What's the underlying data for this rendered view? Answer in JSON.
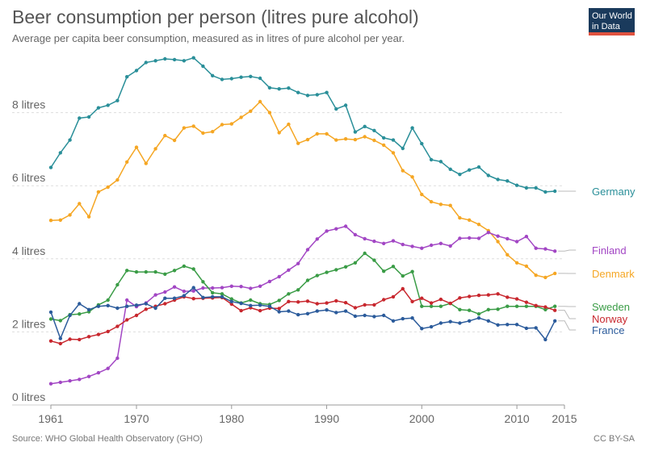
{
  "header": {
    "title": "Beer consumption per person (litres pure alcohol)",
    "subtitle": "Average per capita beer consumption, measured as in litres of pure alcohol per year.",
    "logo_line1": "Our World",
    "logo_line2": "in Data"
  },
  "footer": {
    "source": "Source: WHO Global Health Observatory (GHO)",
    "license": "CC BY-SA"
  },
  "chart_data": {
    "type": "line",
    "title": "Beer consumption per person (litres pure alcohol)",
    "subtitle": "Average per capita beer consumption, measured as in litres of pure alcohol per year.",
    "xlabel": "",
    "ylabel": "",
    "xlim": [
      1961,
      2015
    ],
    "ylim": [
      0,
      9.6
    ],
    "x_ticks": [
      1961,
      1970,
      1980,
      1990,
      2000,
      2010,
      2015
    ],
    "x_tick_labels": [
      "1961",
      "1970",
      "1980",
      "1990",
      "2000",
      "2010",
      "2015"
    ],
    "y_ticks": [
      0,
      2,
      4,
      6,
      8
    ],
    "y_tick_labels": [
      "0 litres",
      "2 litres",
      "4 litres",
      "6 litres",
      "8 litres"
    ],
    "grid": "horizontal dashed",
    "legend": "right, end-of-line labels",
    "x": [
      1961,
      1962,
      1963,
      1964,
      1965,
      1966,
      1967,
      1968,
      1969,
      1970,
      1971,
      1972,
      1973,
      1974,
      1975,
      1976,
      1977,
      1978,
      1979,
      1980,
      1981,
      1982,
      1983,
      1984,
      1985,
      1986,
      1987,
      1988,
      1989,
      1990,
      1991,
      1992,
      1993,
      1994,
      1995,
      1996,
      1997,
      1998,
      1999,
      2000,
      2001,
      2002,
      2003,
      2004,
      2005,
      2006,
      2007,
      2008,
      2009,
      2010,
      2011,
      2012,
      2013,
      2014
    ],
    "series": [
      {
        "name": "Germany",
        "color": "#2a8f99",
        "values": [
          6.5,
          6.9,
          7.25,
          7.85,
          7.88,
          8.13,
          8.2,
          8.33,
          8.98,
          9.15,
          9.37,
          9.42,
          9.47,
          9.45,
          9.42,
          9.5,
          9.27,
          9.01,
          8.91,
          8.93,
          8.97,
          8.99,
          8.94,
          8.68,
          8.65,
          8.67,
          8.55,
          8.47,
          8.49,
          8.55,
          8.1,
          8.2,
          7.47,
          7.62,
          7.51,
          7.31,
          7.25,
          7.02,
          7.58,
          7.15,
          6.71,
          6.66,
          6.45,
          6.31,
          6.43,
          6.51,
          6.28,
          6.17,
          6.13,
          6.01,
          5.94,
          5.94,
          5.83,
          5.85
        ]
      },
      {
        "name": "Denmark",
        "color": "#f5a623",
        "values": [
          5.05,
          5.06,
          5.2,
          5.51,
          5.15,
          5.83,
          5.96,
          6.16,
          6.65,
          7.05,
          6.61,
          7.01,
          7.37,
          7.24,
          7.58,
          7.63,
          7.44,
          7.48,
          7.67,
          7.69,
          7.87,
          8.04,
          8.3,
          8.0,
          7.45,
          7.68,
          7.16,
          7.26,
          7.42,
          7.42,
          7.25,
          7.28,
          7.26,
          7.34,
          7.24,
          7.11,
          6.9,
          6.41,
          6.24,
          5.76,
          5.56,
          5.49,
          5.46,
          5.12,
          5.06,
          4.94,
          4.77,
          4.47,
          4.11,
          3.89,
          3.8,
          3.55,
          3.49,
          3.6
        ]
      },
      {
        "name": "Finland",
        "color": "#a246c4",
        "values": [
          0.58,
          0.62,
          0.66,
          0.7,
          0.78,
          0.88,
          1.0,
          1.28,
          2.87,
          2.69,
          2.79,
          3.01,
          3.09,
          3.23,
          3.11,
          3.12,
          3.2,
          3.2,
          3.21,
          3.25,
          3.24,
          3.19,
          3.25,
          3.38,
          3.51,
          3.69,
          3.87,
          4.25,
          4.54,
          4.76,
          4.82,
          4.89,
          4.66,
          4.55,
          4.48,
          4.42,
          4.49,
          4.39,
          4.34,
          4.29,
          4.37,
          4.42,
          4.35,
          4.56,
          4.57,
          4.56,
          4.72,
          4.62,
          4.55,
          4.47,
          4.61,
          4.29,
          4.27,
          4.21
        ]
      },
      {
        "name": "Sweden",
        "color": "#3a9c46",
        "values": [
          2.35,
          2.31,
          2.47,
          2.49,
          2.55,
          2.74,
          2.87,
          3.29,
          3.68,
          3.64,
          3.64,
          3.64,
          3.58,
          3.68,
          3.8,
          3.72,
          3.37,
          3.07,
          3.04,
          2.9,
          2.79,
          2.87,
          2.77,
          2.75,
          2.86,
          3.04,
          3.15,
          3.41,
          3.54,
          3.63,
          3.7,
          3.78,
          3.89,
          4.15,
          3.96,
          3.66,
          3.79,
          3.53,
          3.65,
          2.7,
          2.7,
          2.7,
          2.78,
          2.61,
          2.59,
          2.49,
          2.61,
          2.62,
          2.7,
          2.7,
          2.7,
          2.7,
          2.61,
          2.7
        ]
      },
      {
        "name": "Norway",
        "color": "#c8272e",
        "values": [
          1.75,
          1.68,
          1.8,
          1.79,
          1.87,
          1.93,
          2.01,
          2.15,
          2.33,
          2.45,
          2.62,
          2.7,
          2.77,
          2.87,
          2.96,
          2.91,
          2.92,
          2.93,
          2.94,
          2.76,
          2.58,
          2.66,
          2.58,
          2.65,
          2.64,
          2.83,
          2.82,
          2.84,
          2.77,
          2.79,
          2.85,
          2.8,
          2.66,
          2.74,
          2.74,
          2.88,
          2.96,
          3.18,
          2.83,
          2.92,
          2.79,
          2.89,
          2.78,
          2.93,
          2.97,
          3.0,
          3.01,
          3.04,
          2.95,
          2.9,
          2.81,
          2.72,
          2.68,
          2.59
        ]
      },
      {
        "name": "France",
        "color": "#2b5b9b",
        "values": [
          2.54,
          1.82,
          2.45,
          2.77,
          2.61,
          2.7,
          2.72,
          2.65,
          2.7,
          2.73,
          2.77,
          2.65,
          2.92,
          2.92,
          2.99,
          3.21,
          2.94,
          2.96,
          2.96,
          2.83,
          2.78,
          2.72,
          2.73,
          2.7,
          2.55,
          2.57,
          2.47,
          2.5,
          2.57,
          2.6,
          2.53,
          2.57,
          2.43,
          2.45,
          2.42,
          2.45,
          2.3,
          2.36,
          2.38,
          2.09,
          2.14,
          2.24,
          2.28,
          2.24,
          2.3,
          2.38,
          2.3,
          2.19,
          2.2,
          2.2,
          2.1,
          2.11,
          1.79,
          2.3
        ]
      }
    ]
  }
}
